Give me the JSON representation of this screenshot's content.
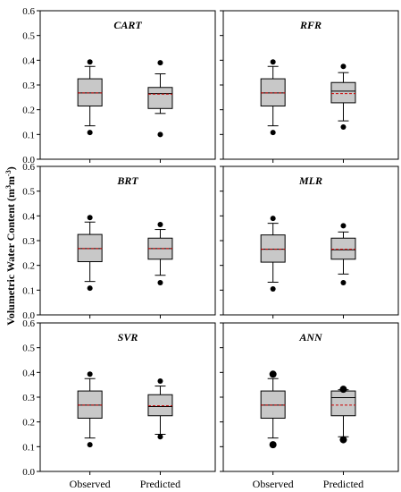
{
  "chart_data": {
    "type": "boxplot",
    "ylabel": {
      "main": "Volumetric Water Content (m",
      "sup1": "3",
      "mid": "m",
      "sup2": "-3",
      "end": ")"
    },
    "ylim": [
      0,
      0.6
    ],
    "yticks": [
      "0.0",
      "0.1",
      "0.2",
      "0.3",
      "0.4",
      "0.5",
      "0.6"
    ],
    "categories": [
      "Observed",
      "Predicted"
    ],
    "legend": "none",
    "grid": false,
    "colors": {
      "box_fill": "#c8c8c8",
      "median": "#000000",
      "mean": "#cc0000",
      "outlier": "#000000"
    },
    "panels": [
      {
        "title": "CART",
        "boxes": [
          {
            "category": "Observed",
            "whisker_low": 0.135,
            "q1": 0.215,
            "median": 0.268,
            "mean": 0.268,
            "q3": 0.325,
            "whisker_high": 0.375,
            "outliers": [
              0.108,
              0.393
            ]
          },
          {
            "category": "Predicted",
            "whisker_low": 0.185,
            "q1": 0.205,
            "median": 0.265,
            "mean": 0.263,
            "q3": 0.29,
            "whisker_high": 0.345,
            "outliers": [
              0.1,
              0.39
            ]
          }
        ]
      },
      {
        "title": "RFR",
        "boxes": [
          {
            "category": "Observed",
            "whisker_low": 0.135,
            "q1": 0.215,
            "median": 0.268,
            "mean": 0.268,
            "q3": 0.325,
            "whisker_high": 0.375,
            "outliers": [
              0.108,
              0.393
            ]
          },
          {
            "category": "Predicted",
            "whisker_low": 0.155,
            "q1": 0.228,
            "median": 0.275,
            "mean": 0.265,
            "q3": 0.31,
            "whisker_high": 0.35,
            "outliers": [
              0.13,
              0.375
            ]
          }
        ]
      },
      {
        "title": "BRT",
        "boxes": [
          {
            "category": "Observed",
            "whisker_low": 0.135,
            "q1": 0.215,
            "median": 0.268,
            "mean": 0.268,
            "q3": 0.325,
            "whisker_high": 0.375,
            "outliers": [
              0.108,
              0.393
            ]
          },
          {
            "category": "Predicted",
            "whisker_low": 0.16,
            "q1": 0.225,
            "median": 0.268,
            "mean": 0.268,
            "q3": 0.31,
            "whisker_high": 0.345,
            "outliers": [
              0.13,
              0.365
            ]
          }
        ]
      },
      {
        "title": "MLR",
        "boxes": [
          {
            "category": "Observed",
            "whisker_low": 0.132,
            "q1": 0.213,
            "median": 0.265,
            "mean": 0.265,
            "q3": 0.323,
            "whisker_high": 0.37,
            "outliers": [
              0.105,
              0.39
            ]
          },
          {
            "category": "Predicted",
            "whisker_low": 0.165,
            "q1": 0.225,
            "median": 0.263,
            "mean": 0.265,
            "q3": 0.31,
            "whisker_high": 0.335,
            "outliers": [
              0.13,
              0.36
            ]
          }
        ]
      },
      {
        "title": "SVR",
        "boxes": [
          {
            "category": "Observed",
            "whisker_low": 0.135,
            "q1": 0.215,
            "median": 0.268,
            "mean": 0.268,
            "q3": 0.325,
            "whisker_high": 0.375,
            "outliers": [
              0.108,
              0.393
            ]
          },
          {
            "category": "Predicted",
            "whisker_low": 0.15,
            "q1": 0.225,
            "median": 0.262,
            "mean": 0.265,
            "q3": 0.31,
            "whisker_high": 0.345,
            "outliers": [
              0.14,
              0.365
            ]
          }
        ]
      },
      {
        "title": "ANN",
        "boxes": [
          {
            "category": "Observed",
            "whisker_low": 0.135,
            "q1": 0.215,
            "median": 0.268,
            "mean": 0.268,
            "q3": 0.325,
            "whisker_high": 0.375,
            "outliers": [
              0.108,
              0.393
            ]
          },
          {
            "category": "Predicted",
            "whisker_low": 0.14,
            "q1": 0.225,
            "median": 0.298,
            "mean": 0.268,
            "q3": 0.325,
            "whisker_high": 0.33,
            "outliers": [
              0.128,
              0.332
            ]
          }
        ]
      }
    ]
  }
}
